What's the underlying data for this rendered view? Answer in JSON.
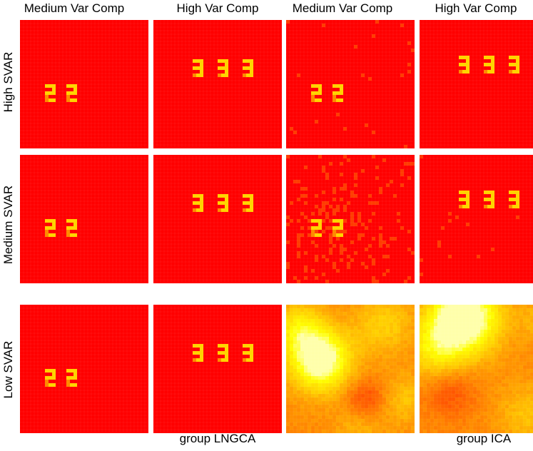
{
  "column_titles": [
    "Medium Var Comp",
    "High Var Comp",
    "Medium Var Comp",
    "High Var Comp"
  ],
  "row_labels": [
    "High SVAR",
    "Medium SVAR",
    "Low SVAR"
  ],
  "method_labels": [
    "group LNGCA",
    "group ICA"
  ],
  "colors": {
    "background_red": "#ff0000",
    "glyph_yellow": "#ffd400",
    "glyph_orange": "#ff8a00",
    "noise_orange": "#ff3c00",
    "bright_yellow": "#ffff80"
  },
  "panels": [
    {
      "row": 0,
      "col": 0,
      "glyphs": "2",
      "count": 2,
      "noise": "none"
    },
    {
      "row": 0,
      "col": 1,
      "glyphs": "3",
      "count": 3,
      "noise": "none"
    },
    {
      "row": 0,
      "col": 2,
      "glyphs": "2",
      "count": 2,
      "noise": "faint"
    },
    {
      "row": 0,
      "col": 3,
      "glyphs": "3",
      "count": 3,
      "noise": "none"
    },
    {
      "row": 1,
      "col": 0,
      "glyphs": "2",
      "count": 2,
      "noise": "none"
    },
    {
      "row": 1,
      "col": 1,
      "glyphs": "3",
      "count": 3,
      "noise": "none"
    },
    {
      "row": 1,
      "col": 2,
      "glyphs": "2",
      "count": 2,
      "noise": "speckled"
    },
    {
      "row": 1,
      "col": 3,
      "glyphs": "3",
      "count": 3,
      "noise": "faint"
    },
    {
      "row": 2,
      "col": 0,
      "glyphs": "2",
      "count": 2,
      "noise": "none"
    },
    {
      "row": 2,
      "col": 1,
      "glyphs": "3",
      "count": 3,
      "noise": "none"
    },
    {
      "row": 2,
      "col": 2,
      "glyphs": "",
      "count": 0,
      "noise": "smooth-field"
    },
    {
      "row": 2,
      "col": 3,
      "glyphs": "",
      "count": 0,
      "noise": "smooth-field"
    }
  ]
}
